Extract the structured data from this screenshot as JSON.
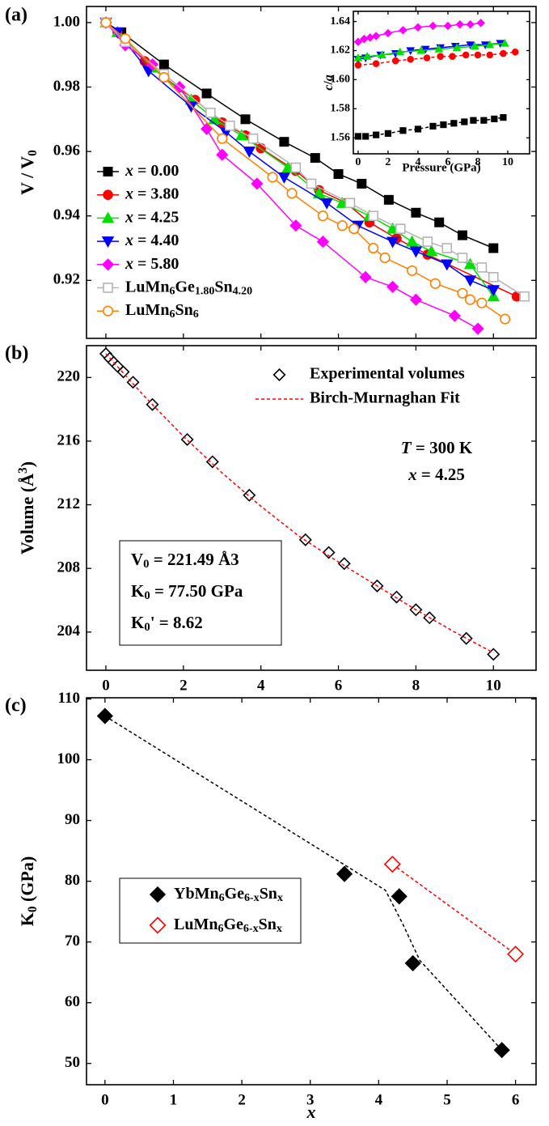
{
  "chart_data": [
    {
      "type": "line",
      "panel_label": "(a)",
      "y_label": "V / V0",
      "xlim": [
        -0.5,
        11.1
      ],
      "xticks": [
        0,
        2,
        4,
        6,
        8,
        10
      ],
      "xtick_labels": false,
      "ylim": [
        0.902,
        1.005
      ],
      "yticks": [
        0.92,
        0.94,
        0.96,
        0.98,
        {
          "value": 1,
          "label": "1.00"
        }
      ],
      "legend": "lower left",
      "series": [
        {
          "name": "x = 0.00",
          "color": "#000000",
          "marker": "square",
          "line": "solid",
          "x": [
            0,
            0.4,
            1.5,
            2.6,
            3.6,
            4.6,
            5.4,
            6.0,
            6.6,
            7.3,
            8.0,
            8.6,
            9.2,
            10.0
          ],
          "values": [
            1.0,
            0.997,
            0.987,
            0.978,
            0.97,
            0.963,
            0.958,
            0.953,
            0.95,
            0.945,
            0.941,
            0.938,
            0.934,
            0.93
          ]
        },
        {
          "name": "x = 3.80",
          "color": "#ff0000",
          "marker": "circle",
          "line": "solid",
          "x": [
            0,
            0.3,
            1.0,
            1.5,
            2.3,
            3.0,
            3.6,
            4.0,
            4.9,
            5.5,
            6.2,
            6.8,
            7.5,
            8.3,
            10.6
          ],
          "values": [
            1.0,
            0.997,
            0.988,
            0.983,
            0.976,
            0.969,
            0.965,
            0.961,
            0.954,
            0.948,
            0.944,
            0.938,
            0.933,
            0.928,
            0.915
          ]
        },
        {
          "name": "x = 4.25",
          "color": "#00e000",
          "marker": "triangle-up",
          "line": "solid",
          "x": [
            0,
            0.3,
            1.2,
            2.2,
            2.8,
            3.5,
            4.7,
            5.5,
            6.1,
            6.8,
            7.4,
            7.9,
            8.4,
            9.4,
            10.0
          ],
          "values": [
            1.0,
            0.997,
            0.986,
            0.976,
            0.97,
            0.965,
            0.955,
            0.947,
            0.944,
            0.94,
            0.936,
            0.932,
            0.929,
            0.925,
            0.915
          ]
        },
        {
          "name": "x = 4.40",
          "color": "#0000ff",
          "marker": "triangle-down",
          "line": "solid",
          "x": [
            0,
            0.3,
            1.1,
            2.2,
            3.1,
            3.7,
            4.6,
            5.7,
            6.5,
            7.4,
            8.0,
            8.8,
            9.4,
            10.0
          ],
          "values": [
            1.0,
            0.997,
            0.985,
            0.974,
            0.966,
            0.96,
            0.952,
            0.944,
            0.937,
            0.932,
            0.929,
            0.925,
            0.92,
            0.917
          ]
        },
        {
          "name": "x = 5.80",
          "color": "#ff00ff",
          "marker": "diamond",
          "line": "solid",
          "x": [
            0,
            0.5,
            1.2,
            1.9,
            2.6,
            3.0,
            3.9,
            4.9,
            5.6,
            6.7,
            7.4,
            8.0,
            9.0,
            9.6
          ],
          "values": [
            1.0,
            0.993,
            0.987,
            0.98,
            0.967,
            0.959,
            0.95,
            0.937,
            0.932,
            0.921,
            0.918,
            0.914,
            0.909,
            0.905
          ]
        },
        {
          "name": "LuMn6Ge1.80Sn4.20",
          "color": "#b4b4b4",
          "marker": "square-open",
          "line": "solid",
          "x": [
            0,
            0.5,
            1.5,
            2.7,
            3.2,
            3.8,
            4.9,
            5.3,
            6.3,
            6.9,
            7.6,
            8.3,
            8.8,
            9.2,
            9.7,
            10.0,
            10.8
          ],
          "values": [
            1.0,
            0.994,
            0.984,
            0.972,
            0.968,
            0.964,
            0.955,
            0.95,
            0.944,
            0.94,
            0.936,
            0.932,
            0.93,
            0.927,
            0.924,
            0.921,
            0.915
          ]
        },
        {
          "name": "LuMn6Sn6",
          "color": "#ff8000",
          "marker": "circle-open",
          "line": "solid",
          "x": [
            0,
            0.5,
            1.5,
            3.0,
            4.3,
            4.8,
            5.6,
            6.1,
            6.4,
            6.9,
            7.2,
            7.9,
            8.5,
            9.2,
            9.4,
            9.7,
            10.3
          ],
          "values": [
            1.0,
            0.995,
            0.983,
            0.964,
            0.952,
            0.947,
            0.94,
            0.937,
            0.936,
            0.93,
            0.927,
            0.923,
            0.919,
            0.916,
            0.914,
            0.913,
            0.908
          ]
        }
      ]
    },
    {
      "type": "line",
      "x_label": "Pressure (GPa)",
      "y_label": "c/a",
      "xlim": [
        -0.32,
        11.46
      ],
      "xticks": [
        0,
        2,
        4,
        6,
        8,
        10
      ],
      "ylim": [
        1.549,
        1.647
      ],
      "yticks": [
        1.56,
        1.58,
        {
          "value": 1.6,
          "label": "1.60"
        },
        1.62,
        1.64
      ],
      "series": [
        {
          "color": "#000000",
          "marker": "square",
          "line": "dashed",
          "x": [
            0,
            0.5,
            1.2,
            2,
            3,
            4,
            5,
            5.7,
            6.4,
            7.1,
            7.7,
            8.4,
            9.1,
            9.7
          ],
          "values": [
            1.561,
            1.561,
            1.562,
            1.563,
            1.565,
            1.566,
            1.568,
            1.569,
            1.57,
            1.571,
            1.572,
            1.572,
            1.573,
            1.574
          ]
        },
        {
          "color": "#ff00ff",
          "marker": "diamond",
          "line": "solid",
          "x": [
            0,
            0.4,
            0.8,
            1.2,
            2,
            3,
            4,
            5,
            6,
            6.8,
            7.5,
            8.2
          ],
          "values": [
            1.626,
            1.628,
            1.629,
            1.63,
            1.632,
            1.634,
            1.636,
            1.637,
            1.637,
            1.638,
            1.638,
            1.639
          ]
        },
        {
          "color": "#0000ff",
          "marker": "triangle-down",
          "line": "solid",
          "x": [
            0,
            0.5,
            1.5,
            2.5,
            3.5,
            4.5,
            5.5,
            6.5,
            7.5,
            8.5,
            9.5
          ],
          "values": [
            1.614,
            1.615,
            1.617,
            1.618,
            1.62,
            1.621,
            1.622,
            1.623,
            1.624,
            1.624,
            1.625
          ]
        },
        {
          "color": "#00e000",
          "marker": "triangle-up",
          "line": "solid",
          "x": [
            0,
            0.6,
            1.6,
            2.8,
            4.2,
            5.4,
            6.6,
            7.8,
            8.8,
            9.8
          ],
          "values": [
            1.615,
            1.616,
            1.617,
            1.619,
            1.62,
            1.621,
            1.622,
            1.623,
            1.624,
            1.625
          ]
        },
        {
          "color": "#ff0000",
          "marker": "circle",
          "line": "dashed",
          "x": [
            0,
            1.2,
            2.5,
            3.5,
            4.6,
            5.5,
            6.3,
            7.2,
            8,
            8.8,
            9.7,
            10.5
          ],
          "values": [
            1.61,
            1.611,
            1.613,
            1.614,
            1.615,
            1.616,
            1.616,
            1.617,
            1.617,
            1.617,
            1.618,
            1.619
          ]
        }
      ]
    },
    {
      "type": "scatter",
      "panel_label": "(b)",
      "x_label": "Pressure (GPa)",
      "y_label": "Volume (Å3)",
      "xlim": [
        -0.5,
        11.1
      ],
      "xticks": [
        0,
        2,
        4,
        6,
        8,
        10
      ],
      "ylim": [
        201.6,
        222.0
      ],
      "yticks": [
        204,
        208,
        212,
        216,
        220
      ],
      "legend": "upper right",
      "annotations": [
        "T = 300 K",
        "x = 4.25"
      ],
      "fit_parameters": [
        "V0 = 221.49 Å3",
        "K0 = 77.50 GPa",
        "K0' = 8.62"
      ],
      "series": [
        {
          "name": "Experimental volumes",
          "color": "#000000",
          "marker": "diamond-open",
          "line": "none",
          "x": [
            0,
            0.1,
            0.2,
            0.3,
            0.45,
            0.7,
            1.2,
            2.1,
            2.75,
            3.7,
            5.15,
            5.75,
            6.15,
            7.0,
            7.5,
            8.0,
            8.35,
            9.3,
            10.0
          ],
          "values": [
            221.49,
            221.2,
            220.95,
            220.7,
            220.35,
            219.7,
            218.3,
            216.1,
            214.7,
            212.6,
            209.8,
            209.0,
            208.3,
            206.9,
            206.2,
            205.4,
            204.9,
            203.6,
            202.6
          ]
        },
        {
          "name": "Birch-Murnaghan Fit",
          "color": "#ff0000",
          "marker": "none",
          "line": "dashed",
          "x": [
            0,
            1,
            2,
            3,
            4,
            5,
            6,
            7,
            8,
            9,
            10
          ],
          "values": [
            221.49,
            218.8,
            216.3,
            214.0,
            211.9,
            210.0,
            208.4,
            206.9,
            205.4,
            204.0,
            202.7
          ]
        }
      ]
    },
    {
      "type": "scatter",
      "panel_label": "(c)",
      "x_label": "x",
      "y_label": "K0 (GPa)",
      "xlim": [
        -0.27,
        6.3
      ],
      "xticks": [
        0,
        1,
        2,
        3,
        4,
        5,
        6
      ],
      "ylim": [
        46.5,
        110.2
      ],
      "yticks": [
        50,
        60,
        70,
        80,
        90,
        100,
        110
      ],
      "legend": "lower left",
      "series": [
        {
          "color": "#000000",
          "marker": "none",
          "line": "dashed",
          "x": [
            0,
            4.1,
            4.35,
            4.6,
            5.8
          ],
          "values": [
            107.2,
            78.5,
            73.0,
            67.0,
            52.2
          ]
        },
        {
          "name": "YbMn6Ge6-xSnx",
          "color": "#000000",
          "marker": "diamond",
          "line": "none",
          "x": [
            0,
            3.5,
            4.3,
            4.5,
            5.8
          ],
          "values": [
            107.2,
            81.2,
            77.5,
            66.5,
            52.2
          ]
        },
        {
          "name": "LuMn6Ge6-xSnx",
          "color": "#ff0000",
          "marker": "diamond-open",
          "line": "dashed",
          "x": [
            4.2,
            6.0
          ],
          "values": [
            82.8,
            68.0
          ]
        }
      ]
    }
  ]
}
